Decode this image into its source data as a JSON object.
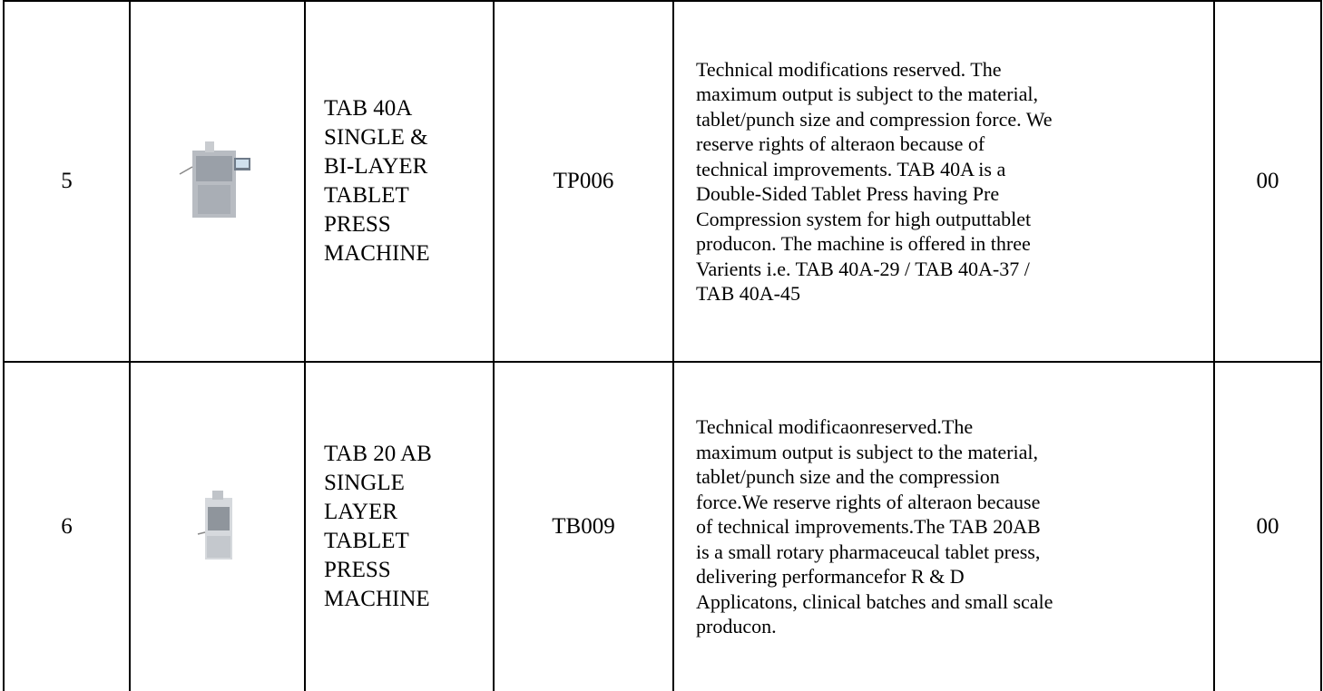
{
  "table": {
    "rows": [
      {
        "no": "5",
        "name": [
          "TAB 40A",
          "SINGLE &",
          "BI-LAYER",
          "TABLET",
          "PRESS",
          "MACHINE"
        ],
        "code": "TP006",
        "description": [
          "Technical modifications reserved. The",
          "maximum output is subject to the material,",
          "tablet/punch size and compression force. We",
          "reserve rights of alteraon because of",
          "technical improvements. TAB 40A is a",
          "Double-Sided Tablet Press having Pre",
          "Compression system for high outputtablet",
          "producon. The machine is offered in three",
          "Varients i.e. TAB 40A-29 / TAB 40A-37 /",
          "TAB 40A-45"
        ],
        "qty": "00"
      },
      {
        "no": "6",
        "name": [
          "TAB 20 AB",
          "SINGLE",
          "LAYER",
          "TABLET",
          "PRESS",
          "MACHINE"
        ],
        "code": "TB009",
        "description": [
          "Technical modificaonreserved.The",
          "maximum output is subject to the material,",
          "tablet/punch size and the compression",
          "force.We reserve rights of alteraon because",
          "of technical improvements.The TAB 20AB",
          "is a small rotary pharmaceucal tablet press,",
          "delivering performancefor R & D",
          "Applicatons, clinical batches and small scale",
          "producon."
        ],
        "qty": "00"
      }
    ]
  }
}
